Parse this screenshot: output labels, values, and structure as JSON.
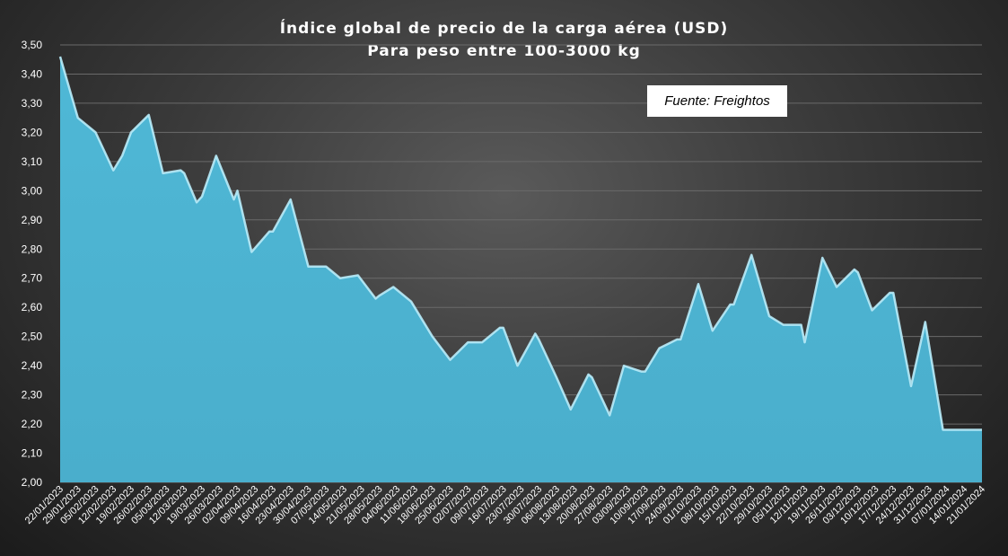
{
  "chart_data": {
    "type": "area",
    "title": "Índice global de precio de la carga aérea (USD)",
    "subtitle": "Para peso entre 100-3000 kg",
    "annotation": "Fuente: Freightos",
    "xlabel": "",
    "ylabel": "",
    "ylim": [
      2.0,
      3.5
    ],
    "yticks": [
      "2,00",
      "2,10",
      "2,20",
      "2,30",
      "2,40",
      "2,50",
      "2,60",
      "2,70",
      "2,80",
      "2,90",
      "3,00",
      "3,10",
      "3,20",
      "3,30",
      "3,40",
      "3,50"
    ],
    "grid": true,
    "legend": "none",
    "fill_color": "#4fb8d6",
    "edge_color": "#b9ecfa",
    "background_color": "#3b3b3b",
    "categories": [
      "22/01/2023",
      "29/01/2023",
      "05/02/2023",
      "12/02/2023",
      "19/02/2023",
      "26/02/2023",
      "05/03/2023",
      "12/03/2023",
      "19/03/2023",
      "26/03/2023",
      "02/04/2023",
      "09/04/2023",
      "16/04/2023",
      "23/04/2023",
      "30/04/2023",
      "07/05/2023",
      "14/05/2023",
      "21/05/2023",
      "28/05/2023",
      "04/06/2023",
      "11/06/2023",
      "18/06/2023",
      "25/06/2023",
      "02/07/2023",
      "09/07/2023",
      "16/07/2023",
      "23/07/2023",
      "30/07/2023",
      "06/08/2023",
      "13/08/2023",
      "20/08/2023",
      "27/08/2023",
      "03/09/2023",
      "10/09/2023",
      "17/09/2023",
      "24/09/2023",
      "01/10/2023",
      "08/10/2023",
      "15/10/2023",
      "22/10/2023",
      "29/10/2023",
      "05/11/2023",
      "12/11/2023",
      "19/11/2023",
      "26/11/2023",
      "03/12/2023",
      "10/12/2023",
      "17/12/2023",
      "24/12/2023",
      "31/12/2023",
      "07/01/2024",
      "14/01/2024",
      "21/01/2024"
    ],
    "x": [
      0,
      1,
      2,
      3,
      3.5,
      4,
      5,
      5.8,
      6.8,
      7,
      7.7,
      8,
      8.8,
      9.8,
      10,
      10.8,
      11.8,
      12,
      13,
      14,
      15,
      15.8,
      16.8,
      17.8,
      18,
      18.8,
      19.8,
      20,
      21,
      22,
      23,
      23.8,
      24.8,
      25,
      25.8,
      26.8,
      27,
      28,
      28.8,
      29.8,
      30,
      31,
      31.8,
      32.8,
      33,
      33.8,
      34.8,
      35,
      36,
      36.8,
      37.8,
      38,
      39,
      40,
      40.8,
      41.8,
      42,
      43,
      43.8,
      44.8,
      45,
      45.8,
      46.8,
      47,
      48,
      48.8,
      49.8,
      50,
      51,
      52
    ],
    "values": [
      3.46,
      3.25,
      3.2,
      3.07,
      3.12,
      3.2,
      3.26,
      3.06,
      3.07,
      3.06,
      2.96,
      2.98,
      3.12,
      2.97,
      3.0,
      2.79,
      2.86,
      2.86,
      2.97,
      2.74,
      2.74,
      2.7,
      2.71,
      2.63,
      2.64,
      2.67,
      2.62,
      2.6,
      2.5,
      2.42,
      2.48,
      2.48,
      2.53,
      2.53,
      2.4,
      2.51,
      2.49,
      2.36,
      2.25,
      2.37,
      2.36,
      2.23,
      2.4,
      2.38,
      2.38,
      2.46,
      2.49,
      2.49,
      2.68,
      2.52,
      2.61,
      2.61,
      2.78,
      2.57,
      2.54,
      2.54,
      2.48,
      2.77,
      2.67,
      2.73,
      2.72,
      2.59,
      2.65,
      2.65,
      2.33,
      2.55,
      2.18,
      2.18,
      2.18,
      2.18
    ]
  }
}
